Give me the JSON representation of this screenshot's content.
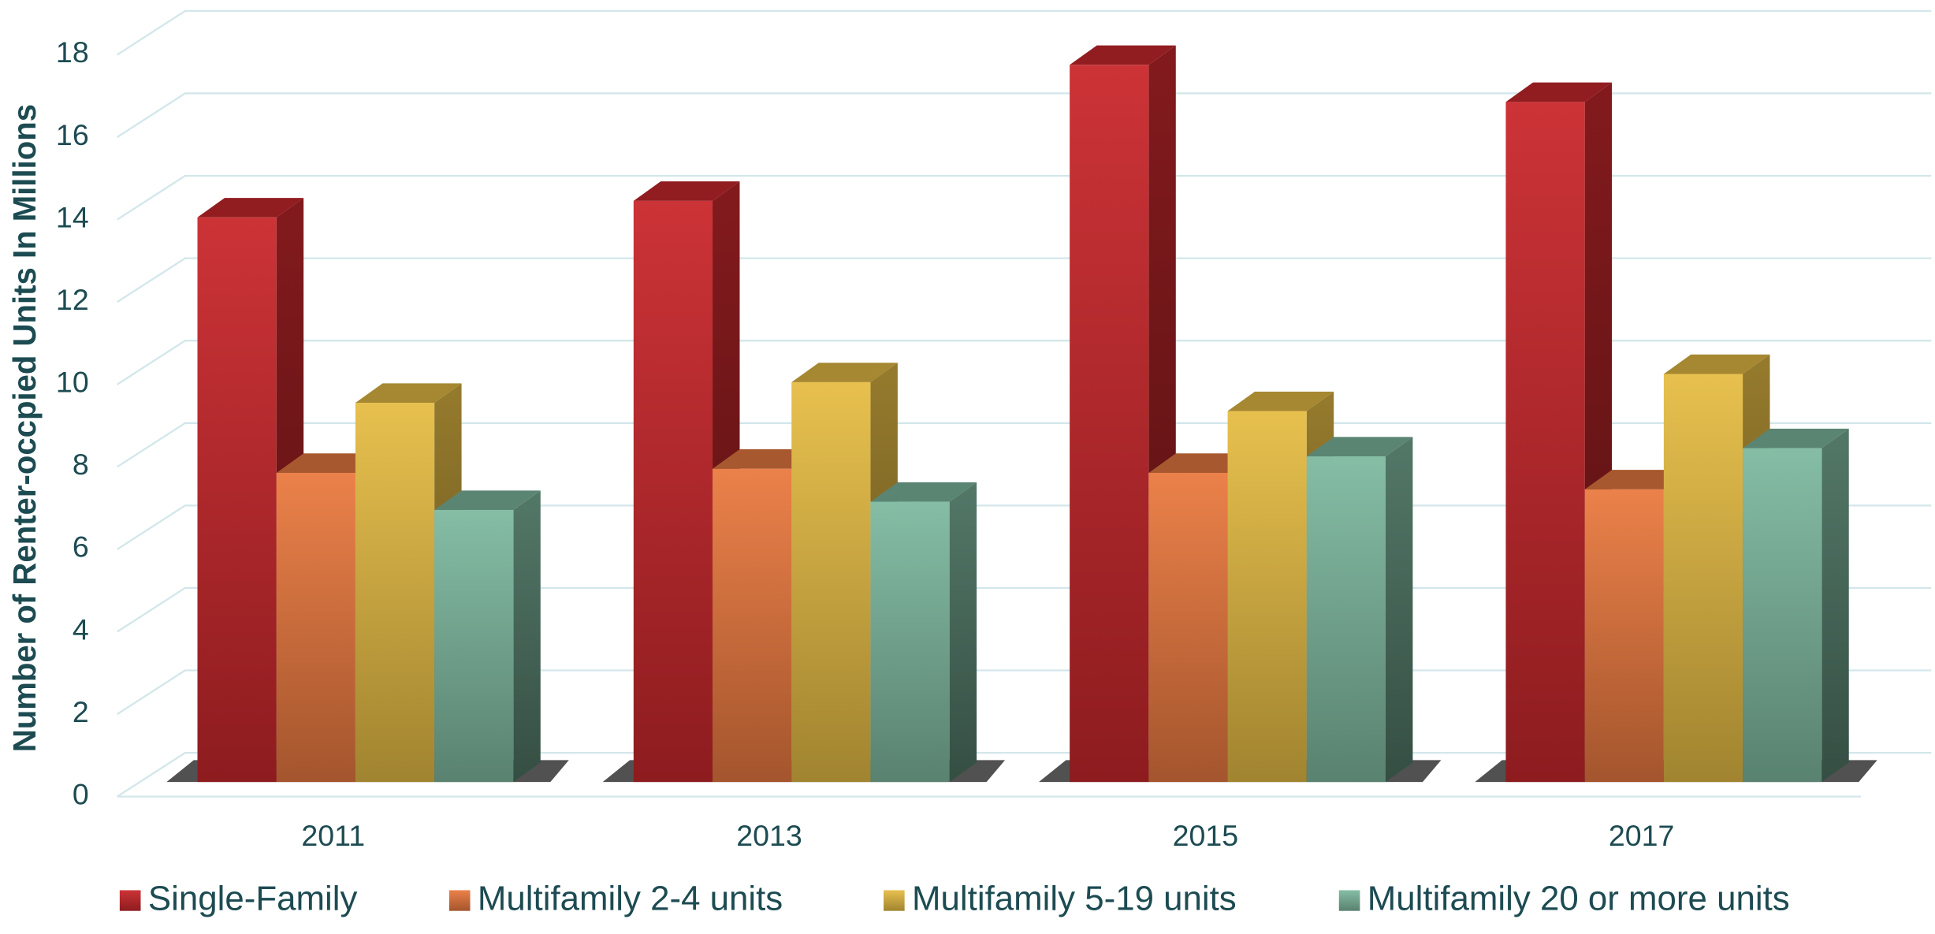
{
  "chart_data": {
    "type": "bar3d",
    "y_axis_label": "Number of Renter-occpied Units In Millions",
    "categories": [
      "2011",
      "2013",
      "2015",
      "2017"
    ],
    "series": [
      {
        "name": "Single-Family",
        "color": "#c9282c",
        "values": [
          13.7,
          14.1,
          17.4,
          16.5
        ]
      },
      {
        "name": "Multifamily 2-4 units",
        "color": "#ea7a40",
        "values": [
          7.5,
          7.6,
          7.5,
          7.1
        ]
      },
      {
        "name": "Multifamily 5-19 units",
        "color": "#e6bd45",
        "values": [
          9.2,
          9.7,
          9.0,
          9.9
        ]
      },
      {
        "name": "Multifamily 20 or more units",
        "color": "#7fb9a0",
        "values": [
          6.6,
          6.8,
          7.9,
          8.1
        ]
      }
    ],
    "ylim": [
      0,
      18
    ],
    "yticks": [
      0,
      2,
      4,
      6,
      8,
      10,
      12,
      14,
      16,
      18
    ],
    "grid": true
  }
}
